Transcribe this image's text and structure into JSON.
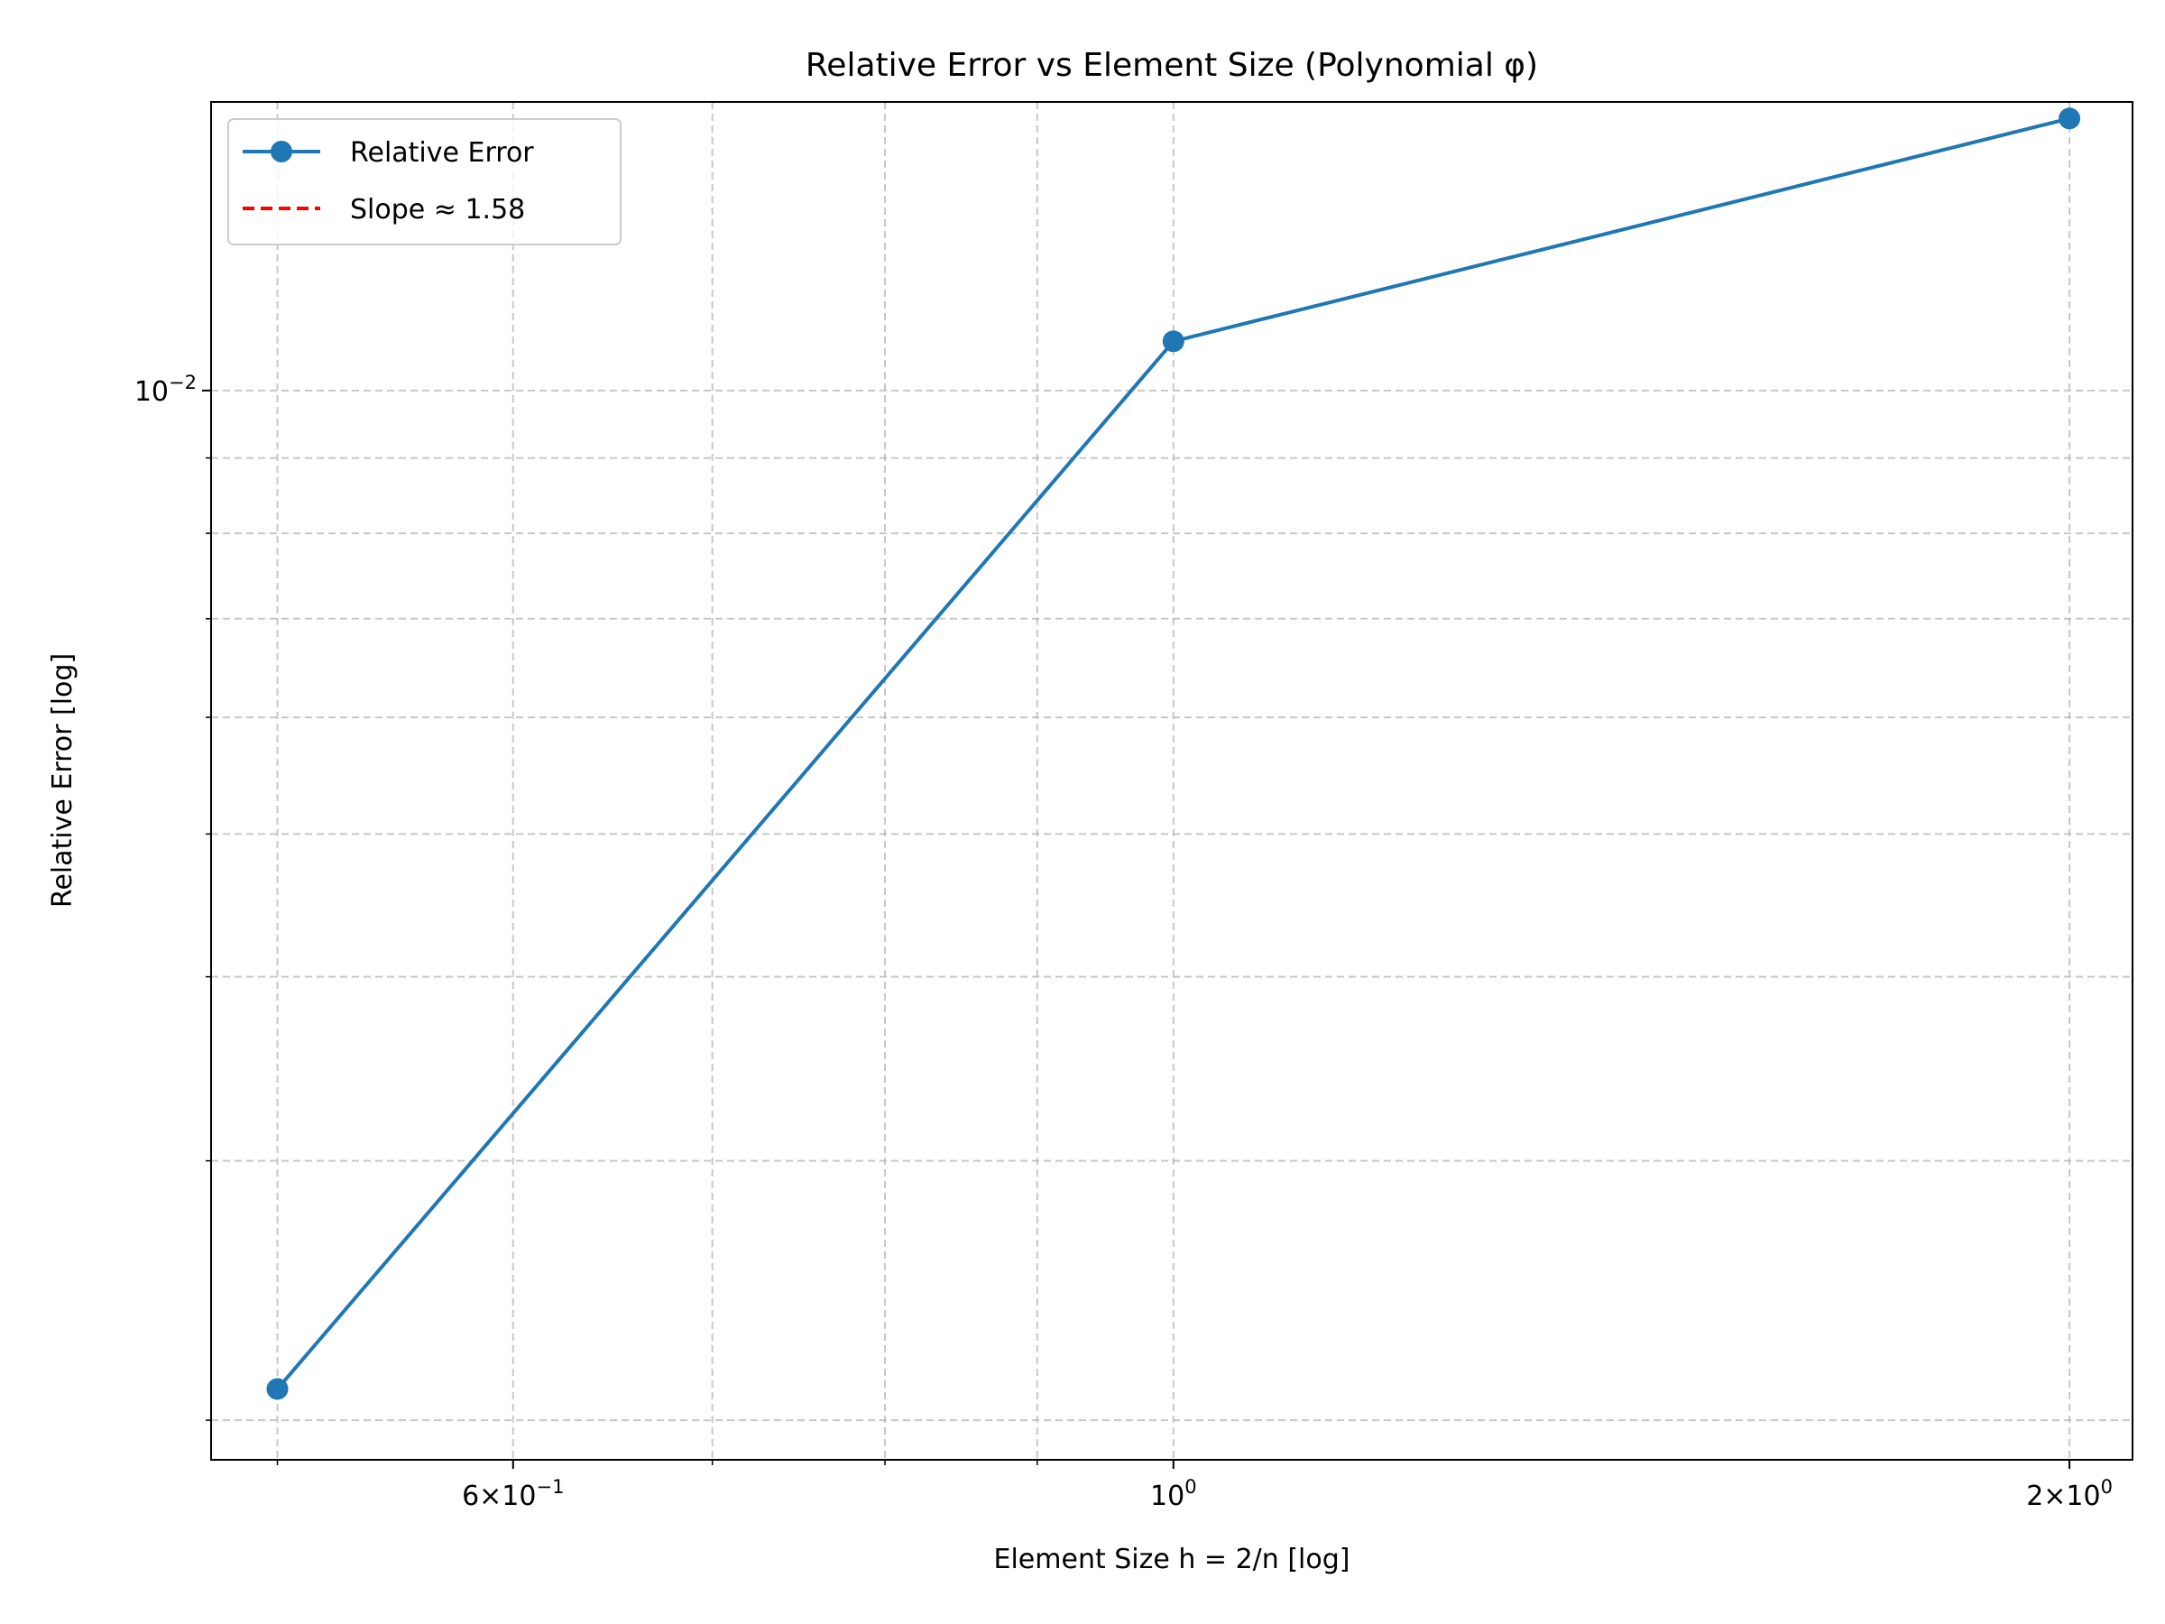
{
  "chart_data": {
    "type": "line",
    "title": "Relative Error vs Element Size (Polynomial φ)",
    "xlabel": "Element Size h = 2/n [log]",
    "ylabel": "Relative Error [log]",
    "x_scale": "log",
    "y_scale": "log",
    "xlim": [
      0.475,
      2.1
    ],
    "ylim": [
      0.00188,
      0.0157
    ],
    "grid": true,
    "legend_position": "upper-left",
    "x_ticks": [
      {
        "value": 0.6,
        "base": "6",
        "exp": "−1"
      },
      {
        "value": 1.0,
        "base": "",
        "exp": "0"
      },
      {
        "value": 2.0,
        "base": "2",
        "exp": "0"
      }
    ],
    "x_minor_ticks": [
      0.5,
      0.7,
      0.8,
      0.9
    ],
    "y_ticks": [
      {
        "value": 0.01,
        "exp": "−2"
      }
    ],
    "y_minor_ticks": [
      0.002,
      0.003,
      0.004,
      0.005,
      0.006,
      0.007,
      0.008,
      0.009
    ],
    "series": [
      {
        "name": "Relative Error",
        "color": "#1f77b4",
        "style": "solid",
        "marker": "circle",
        "x": [
          0.5,
          1.0,
          2.0
        ],
        "y": [
          0.0021,
          0.0108,
          0.0153
        ]
      }
    ],
    "legend": [
      {
        "label": "Relative Error",
        "color": "#1f77b4",
        "style": "solid-marker"
      },
      {
        "label": "Slope ≈ 1.58",
        "color": "#ff0000",
        "style": "dashed"
      }
    ]
  }
}
